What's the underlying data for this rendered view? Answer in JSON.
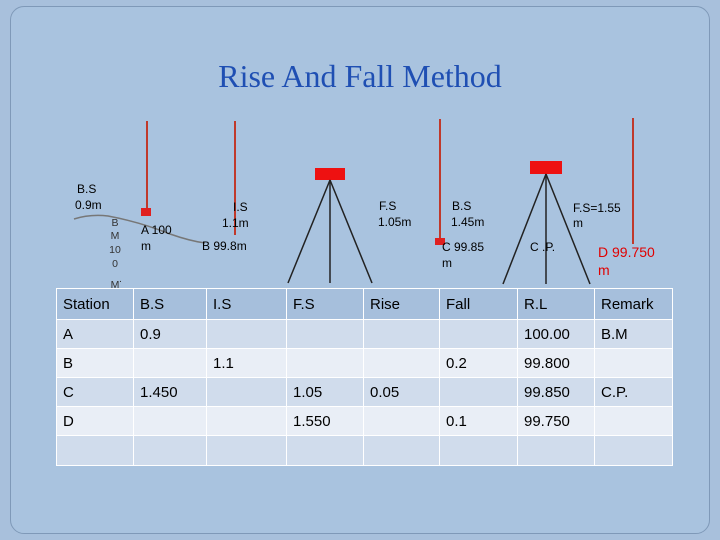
{
  "title": "Rise And Fall Method",
  "labels": {
    "bs_left": "B.S",
    "bs_left_val": "0.9m",
    "bm_letters": [
      "B",
      "M",
      "10",
      "0",
      "M",
      "."
    ],
    "a_label": "A 100",
    "a_unit": "m",
    "is_label": "I.S",
    "is_val": "1.1m",
    "b_label": "B 99.8m",
    "fs1_label": "F.S",
    "fs1_val": "1.05m",
    "bs2_label": "B.S",
    "bs2_val": "1.45m",
    "c_label": "C 99.85",
    "c_unit": "m",
    "cp_label": "C .P.",
    "fs2_label": "F.S=1.55",
    "fs2_unit": "m",
    "d_label": "D 99.750",
    "d_unit": "m"
  },
  "colors": {
    "title": "#1f4fb3",
    "staff": "#c0392b",
    "level": "#ee1111",
    "arrow": "#b22222",
    "highlight": "#e00000"
  },
  "table": {
    "headers": [
      "Station",
      "B.S",
      "I.S",
      "F.S",
      "Rise",
      "Fall",
      "R.L",
      "Remark"
    ],
    "rows": [
      [
        "A",
        "0.9",
        "",
        "",
        "",
        "",
        "100.00",
        "B.M"
      ],
      [
        "B",
        "",
        "1.1",
        "",
        "",
        "0.2",
        "99.800",
        ""
      ],
      [
        "C",
        "1.450",
        "",
        "1.05",
        "0.05",
        "",
        "99.850",
        "C.P."
      ],
      [
        "D",
        "",
        "",
        "1.550",
        "",
        "0.1",
        "99.750",
        ""
      ],
      [
        "",
        "",
        "",
        "",
        "",
        "",
        "",
        ""
      ]
    ]
  }
}
